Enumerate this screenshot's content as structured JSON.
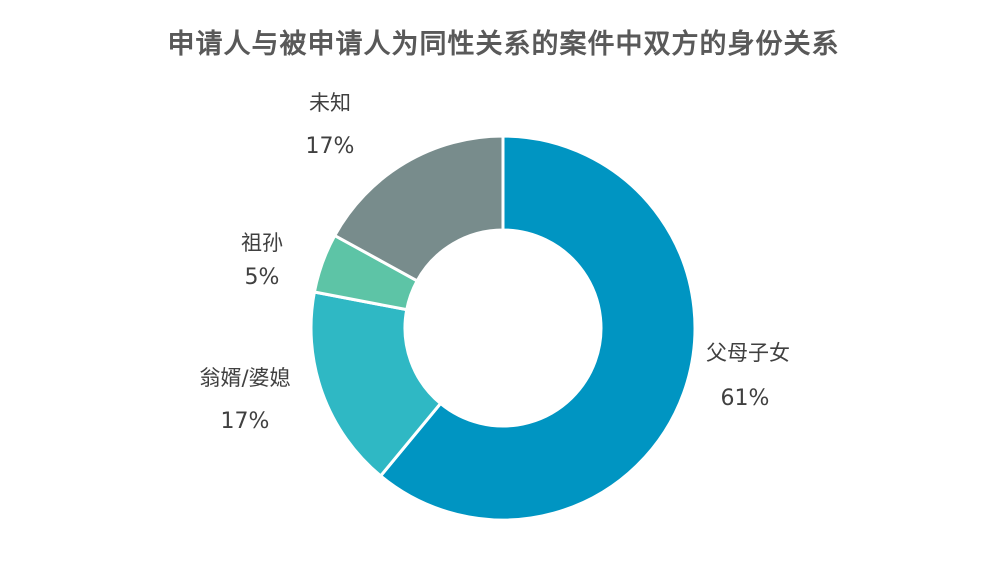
{
  "chart_data": {
    "type": "pie",
    "donut": true,
    "title": "申请人与被申请人为同性关系的案件中双方的身份关系",
    "slices": [
      {
        "label": "父母子女",
        "value": 61,
        "value_label": "61%",
        "color": "#0095C2"
      },
      {
        "label": "翁婿/婆媳",
        "value": 17,
        "value_label": "17%",
        "color": "#2FB8C4"
      },
      {
        "label": "祖孙",
        "value": 5,
        "value_label": "5%",
        "color": "#5DC4A6"
      },
      {
        "label": "未知",
        "value": 17,
        "value_label": "17%",
        "color": "#788C8C"
      }
    ],
    "legend": "none"
  }
}
